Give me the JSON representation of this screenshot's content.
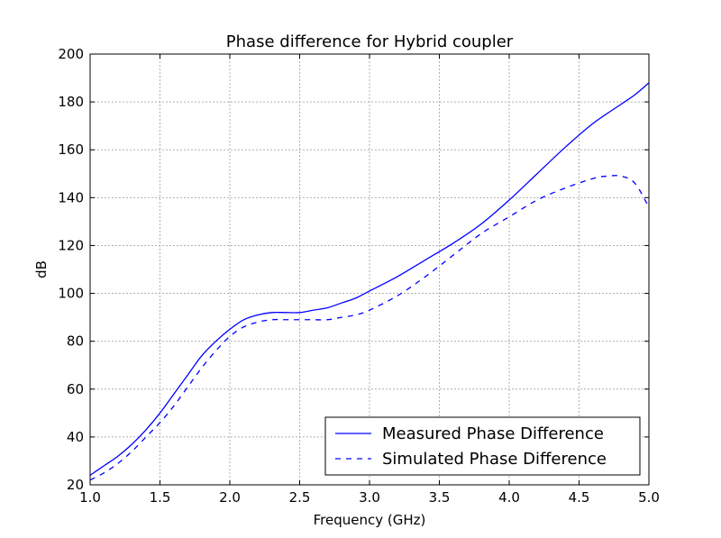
{
  "chart_data": {
    "type": "line",
    "title": "Phase difference for Hybrid coupler",
    "xlabel": "Frequency (GHz)",
    "ylabel": "dB",
    "xlim": [
      1.0,
      5.0
    ],
    "ylim": [
      20,
      200
    ],
    "xticks": [
      1.0,
      1.5,
      2.0,
      2.5,
      3.0,
      3.5,
      4.0,
      4.5,
      5.0
    ],
    "xtick_labels": [
      "1.0",
      "1.5",
      "2.0",
      "2.5",
      "3.0",
      "3.5",
      "4.0",
      "4.5",
      "5.0"
    ],
    "yticks": [
      20,
      40,
      60,
      80,
      100,
      120,
      140,
      160,
      180,
      200
    ],
    "ytick_labels": [
      "20",
      "40",
      "60",
      "80",
      "100",
      "120",
      "140",
      "160",
      "180",
      "200"
    ],
    "grid": true,
    "legend_position": "bottom-right",
    "series": [
      {
        "name": "Measured Phase Difference",
        "style": "solid",
        "color": "#0000ff",
        "x": [
          1.0,
          1.1,
          1.2,
          1.3,
          1.4,
          1.5,
          1.6,
          1.7,
          1.8,
          1.9,
          2.0,
          2.1,
          2.2,
          2.3,
          2.4,
          2.5,
          2.6,
          2.7,
          2.8,
          2.9,
          3.0,
          3.2,
          3.4,
          3.6,
          3.8,
          4.0,
          4.2,
          4.4,
          4.6,
          4.8,
          4.9,
          5.0
        ],
        "y": [
          24,
          28,
          32,
          37,
          43,
          50,
          58,
          66,
          74,
          80,
          85,
          89,
          91,
          92,
          92,
          92,
          93,
          94,
          96,
          98,
          101,
          107,
          114,
          121,
          129,
          139,
          150,
          161,
          171,
          179,
          183,
          188
        ]
      },
      {
        "name": "Simulated Phase Difference",
        "style": "dashed",
        "color": "#0000ff",
        "x": [
          1.0,
          1.1,
          1.2,
          1.3,
          1.4,
          1.5,
          1.6,
          1.7,
          1.8,
          1.9,
          2.0,
          2.1,
          2.2,
          2.3,
          2.4,
          2.5,
          2.6,
          2.7,
          2.8,
          2.9,
          3.0,
          3.2,
          3.4,
          3.6,
          3.8,
          4.0,
          4.2,
          4.4,
          4.6,
          4.7,
          4.8,
          4.9,
          5.0
        ],
        "y": [
          22,
          25,
          29,
          34,
          40,
          46,
          53,
          61,
          69,
          76,
          82,
          86,
          88,
          89,
          89,
          89,
          89,
          89,
          90,
          91,
          93,
          99,
          107,
          116,
          125,
          132,
          139,
          144,
          148,
          149,
          149,
          146,
          136
        ]
      }
    ]
  }
}
